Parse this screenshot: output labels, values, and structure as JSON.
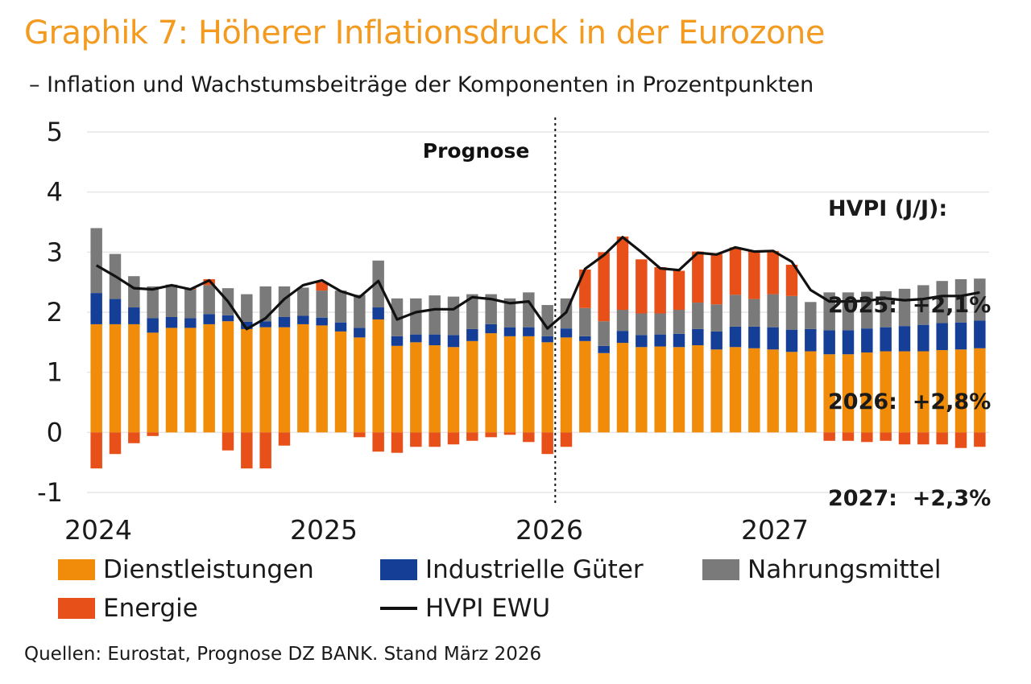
{
  "title": "Graphik 7: Höherer Inflationsdruck in der Eurozone",
  "subtitle": "– Inflation und Wachstumsbeiträge der Komponenten in Prozentpunkten",
  "source": "Quellen: Eurostat, Prognose DZ BANK. Stand März 2026",
  "prognose_label": "Prognose",
  "hvpi_box": [
    "HVPI (J/J):",
    "2025:  +2,1%",
    "2026:  +2,8%",
    "2027:  +2,3%"
  ],
  "colors": {
    "Dienstleistungen": "#f08c0a",
    "Industrielle Güter": "#153f97",
    "Nahrungsmittel": "#7a7a7a",
    "Energie": "#e8501a",
    "HVPI EWU": "#111111",
    "grid": "#e6e6e6"
  },
  "legend": [
    {
      "name": "Dienstleistungen",
      "kind": "swatch"
    },
    {
      "name": "Industrielle Güter",
      "kind": "swatch"
    },
    {
      "name": "Nahrungsmittel",
      "kind": "swatch"
    },
    {
      "name": "Energie",
      "kind": "swatch"
    },
    {
      "name": "HVPI EWU",
      "kind": "line"
    }
  ],
  "chart_data": {
    "type": "bar",
    "stacked": true,
    "ylim": [
      -1,
      5
    ],
    "yticks": [
      -1,
      0,
      1,
      2,
      3,
      4,
      5
    ],
    "year_labels": [
      "2024",
      "2025",
      "2026",
      "2027"
    ],
    "year_label_indices": [
      0,
      12,
      24,
      36
    ],
    "forecast_start_index": 25,
    "grid": true,
    "legend_position": "bottom",
    "categories": [
      "01/2024",
      "02/2024",
      "03/2024",
      "04/2024",
      "05/2024",
      "06/2024",
      "07/2024",
      "08/2024",
      "09/2024",
      "10/2024",
      "11/2024",
      "12/2024",
      "01/2025",
      "02/2025",
      "03/2025",
      "04/2025",
      "05/2025",
      "06/2025",
      "07/2025",
      "08/2025",
      "09/2025",
      "10/2025",
      "11/2025",
      "12/2025",
      "01/2026",
      "02/2026",
      "03/2026",
      "04/2026",
      "05/2026",
      "06/2026",
      "07/2026",
      "08/2026",
      "09/2026",
      "10/2026",
      "11/2026",
      "12/2026",
      "01/2027",
      "02/2027",
      "03/2027",
      "04/2027",
      "05/2027",
      "06/2027",
      "07/2027",
      "08/2027",
      "09/2027",
      "10/2027",
      "11/2027",
      "12/2027"
    ],
    "series": [
      {
        "name": "Dienstleistungen",
        "type": "bar",
        "values": [
          1.8,
          1.8,
          1.8,
          1.66,
          1.74,
          1.74,
          1.8,
          1.85,
          1.72,
          1.75,
          1.75,
          1.8,
          1.78,
          1.68,
          1.58,
          1.88,
          1.44,
          1.5,
          1.45,
          1.42,
          1.52,
          1.65,
          1.6,
          1.6,
          1.5,
          1.58,
          1.52,
          1.32,
          1.49,
          1.42,
          1.43,
          1.42,
          1.45,
          1.38,
          1.42,
          1.4,
          1.38,
          1.34,
          1.35,
          1.3,
          1.3,
          1.33,
          1.35,
          1.35,
          1.35,
          1.37,
          1.38,
          1.4
        ]
      },
      {
        "name": "Industrielle Güter",
        "type": "bar",
        "values": [
          0.52,
          0.42,
          0.28,
          0.24,
          0.18,
          0.16,
          0.17,
          0.1,
          0.12,
          0.1,
          0.17,
          0.14,
          0.13,
          0.15,
          0.16,
          0.2,
          0.16,
          0.13,
          0.18,
          0.2,
          0.2,
          0.15,
          0.15,
          0.15,
          0.1,
          0.15,
          0.08,
          0.12,
          0.2,
          0.2,
          0.2,
          0.22,
          0.27,
          0.3,
          0.34,
          0.36,
          0.37,
          0.37,
          0.37,
          0.4,
          0.4,
          0.4,
          0.4,
          0.42,
          0.44,
          0.45,
          0.45,
          0.46
        ]
      },
      {
        "name": "Nahrungsmittel",
        "type": "bar",
        "values": [
          1.08,
          0.75,
          0.52,
          0.53,
          0.54,
          0.48,
          0.48,
          0.45,
          0.46,
          0.58,
          0.51,
          0.47,
          0.45,
          0.53,
          0.55,
          0.78,
          0.63,
          0.6,
          0.65,
          0.64,
          0.58,
          0.5,
          0.48,
          0.58,
          0.52,
          0.5,
          0.47,
          0.41,
          0.35,
          0.36,
          0.35,
          0.4,
          0.44,
          0.45,
          0.53,
          0.46,
          0.55,
          0.56,
          0.45,
          0.63,
          0.63,
          0.61,
          0.6,
          0.62,
          0.66,
          0.7,
          0.72,
          0.7
        ]
      },
      {
        "name": "Energie",
        "type": "bar",
        "values": [
          -0.6,
          -0.36,
          -0.18,
          -0.06,
          0.0,
          0.02,
          0.1,
          -0.3,
          -0.6,
          -0.6,
          -0.22,
          0.0,
          0.14,
          0.0,
          -0.08,
          -0.32,
          -0.34,
          -0.24,
          -0.24,
          -0.2,
          -0.14,
          -0.08,
          -0.04,
          -0.16,
          -0.36,
          -0.24,
          0.64,
          1.15,
          1.22,
          0.9,
          0.77,
          0.65,
          0.85,
          0.84,
          0.79,
          0.8,
          0.72,
          0.52,
          0.0,
          -0.14,
          -0.14,
          -0.16,
          -0.14,
          -0.2,
          -0.2,
          -0.2,
          -0.26,
          -0.24
        ]
      },
      {
        "name": "HVPI EWU",
        "type": "line",
        "values": [
          2.78,
          2.6,
          2.4,
          2.38,
          2.45,
          2.38,
          2.53,
          2.18,
          1.72,
          1.9,
          2.22,
          2.45,
          2.53,
          2.35,
          2.25,
          2.52,
          1.88,
          2.0,
          2.05,
          2.05,
          2.25,
          2.22,
          2.15,
          2.18,
          1.73,
          2.0,
          2.72,
          2.95,
          3.25,
          3.0,
          2.73,
          2.7,
          2.99,
          2.96,
          3.08,
          3.01,
          3.02,
          2.84,
          2.37,
          2.18,
          2.18,
          2.19,
          2.23,
          2.2,
          2.22,
          2.27,
          2.27,
          2.33
        ]
      }
    ]
  }
}
